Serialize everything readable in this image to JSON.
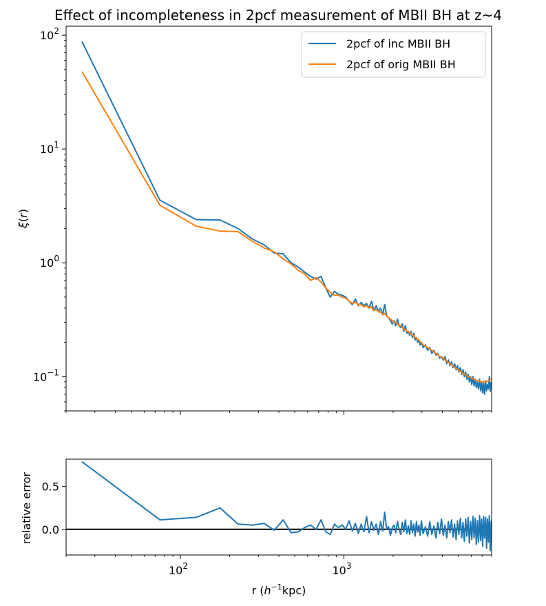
{
  "chart_data": [
    {
      "type": "line",
      "title": "Effect of incompleteness in 2pcf measurement of MBII BH at z~4",
      "xlabel": "",
      "ylabel": "ξ(r)",
      "xscale": "log",
      "yscale": "log",
      "xlim": [
        20,
        8000
      ],
      "ylim": [
        0.05,
        120
      ],
      "y_tick_labels": [
        "10^-1",
        "10^0",
        "10^1",
        "10^2"
      ],
      "legend_placement": "top-right",
      "grid": false,
      "series": [
        {
          "name": "2pcf of inc MBII BH",
          "color": "#1f77b4",
          "x": [
            25,
            75,
            125,
            175,
            225,
            275,
            325,
            375,
            425,
            475,
            525,
            575,
            625,
            675,
            725,
            775,
            825,
            875,
            925,
            975,
            1025,
            1075,
            1125,
            1175,
            1225,
            1275,
            1325,
            1375,
            1425,
            1475,
            1525,
            1575,
            1625,
            1675,
            1725,
            1775,
            1825,
            1875,
            1925,
            1975,
            2025,
            2075,
            2125,
            2175,
            2225,
            2275,
            2325,
            2375,
            2425,
            2475,
            2525,
            2575,
            2625,
            2675,
            2725,
            2775,
            2825,
            2875,
            2925,
            2975,
            3050,
            3150,
            3250,
            3350,
            3450,
            3550,
            3650,
            3750,
            3850,
            3950,
            4050,
            4150,
            4250,
            4350,
            4450,
            4550,
            4650,
            4750,
            4850,
            4950,
            5050,
            5150,
            5250,
            5350,
            5450,
            5550,
            5650,
            5750,
            5850,
            5950,
            6050,
            6150,
            6250,
            6350,
            6450,
            6550,
            6650,
            6750,
            6850,
            6950,
            7050,
            7150,
            7250,
            7350,
            7450,
            7550,
            7650,
            7750,
            7850,
            7950
          ],
          "values": [
            88,
            3.55,
            2.4,
            2.38,
            2.0,
            1.62,
            1.44,
            1.22,
            1.2,
            1.0,
            0.92,
            0.83,
            0.76,
            0.72,
            0.76,
            0.6,
            0.5,
            0.56,
            0.53,
            0.52,
            0.5,
            0.46,
            0.43,
            0.48,
            0.42,
            0.45,
            0.42,
            0.44,
            0.4,
            0.46,
            0.38,
            0.42,
            0.37,
            0.4,
            0.35,
            0.43,
            0.34,
            0.33,
            0.31,
            0.29,
            0.31,
            0.28,
            0.32,
            0.28,
            0.27,
            0.29,
            0.25,
            0.28,
            0.24,
            0.25,
            0.23,
            0.25,
            0.22,
            0.24,
            0.21,
            0.22,
            0.2,
            0.21,
            0.19,
            0.2,
            0.18,
            0.19,
            0.17,
            0.18,
            0.16,
            0.17,
            0.155,
            0.16,
            0.145,
            0.15,
            0.14,
            0.15,
            0.13,
            0.14,
            0.125,
            0.135,
            0.12,
            0.13,
            0.115,
            0.125,
            0.11,
            0.12,
            0.105,
            0.115,
            0.1,
            0.11,
            0.095,
            0.105,
            0.09,
            0.1,
            0.085,
            0.1,
            0.083,
            0.095,
            0.08,
            0.09,
            0.078,
            0.095,
            0.075,
            0.09,
            0.072,
            0.088,
            0.07,
            0.092,
            0.075,
            0.085,
            0.078,
            0.1,
            0.074,
            0.09
          ]
        },
        {
          "name": "2pcf of orig MBII BH",
          "color": "#ff7f0e",
          "x": [
            25,
            75,
            125,
            175,
            225,
            275,
            325,
            375,
            425,
            475,
            525,
            575,
            625,
            675,
            725,
            775,
            825,
            875,
            925,
            975,
            1025,
            1075,
            1125,
            1175,
            1225,
            1275,
            1325,
            1375,
            1425,
            1475,
            1525,
            1575,
            1625,
            1675,
            1725,
            1775,
            1825,
            1875,
            1925,
            1975,
            2025,
            2075,
            2125,
            2175,
            2225,
            2275,
            2325,
            2375,
            2425,
            2475,
            2525,
            2575,
            2625,
            2675,
            2725,
            2775,
            2825,
            2875,
            2925,
            2975,
            3050,
            3150,
            3250,
            3350,
            3450,
            3550,
            3650,
            3750,
            3850,
            3950,
            4050,
            4150,
            4250,
            4350,
            4450,
            4550,
            4650,
            4750,
            4850,
            4950,
            5050,
            5150,
            5250,
            5350,
            5450,
            5550,
            5650,
            5750,
            5850,
            5950,
            6050,
            6150,
            6250,
            6350,
            6450,
            6550,
            6650,
            6750,
            6850,
            6950,
            7050,
            7150,
            7250,
            7350,
            7450,
            7550,
            7650,
            7750,
            7850,
            7950
          ],
          "values": [
            48,
            3.2,
            2.1,
            1.9,
            1.88,
            1.55,
            1.35,
            1.25,
            1.08,
            0.98,
            0.86,
            0.8,
            0.7,
            0.74,
            0.68,
            0.6,
            0.55,
            0.52,
            0.52,
            0.5,
            0.49,
            0.46,
            0.44,
            0.45,
            0.43,
            0.43,
            0.41,
            0.42,
            0.4,
            0.41,
            0.38,
            0.39,
            0.37,
            0.37,
            0.35,
            0.36,
            0.34,
            0.33,
            0.32,
            0.31,
            0.3,
            0.3,
            0.29,
            0.28,
            0.28,
            0.27,
            0.26,
            0.26,
            0.25,
            0.25,
            0.24,
            0.24,
            0.23,
            0.23,
            0.22,
            0.22,
            0.21,
            0.21,
            0.2,
            0.2,
            0.19,
            0.185,
            0.18,
            0.175,
            0.17,
            0.165,
            0.16,
            0.155,
            0.15,
            0.148,
            0.145,
            0.14,
            0.137,
            0.133,
            0.13,
            0.127,
            0.124,
            0.121,
            0.118,
            0.116,
            0.113,
            0.111,
            0.109,
            0.107,
            0.105,
            0.104,
            0.102,
            0.1,
            0.099,
            0.098,
            0.097,
            0.096,
            0.095,
            0.094,
            0.093,
            0.092,
            0.091,
            0.091,
            0.09,
            0.09,
            0.09,
            0.09,
            0.09,
            0.09,
            0.091,
            0.091,
            0.092,
            0.093,
            0.094,
            0.095
          ]
        }
      ]
    },
    {
      "type": "line",
      "title": "",
      "xlabel": "r (h^-1 kpc)",
      "ylabel": "relative error",
      "xscale": "log",
      "xlim": [
        20,
        8000
      ],
      "ylim": [
        -0.3,
        0.82
      ],
      "y_tick_labels": [
        "0.0",
        "0.5"
      ],
      "x_tick_labels": [
        "10^2",
        "10^3"
      ],
      "reference_line": 0.0,
      "grid": false,
      "series": [
        {
          "name": "",
          "color": "#1f77b4",
          "x": [
            25,
            75,
            125,
            175,
            225,
            275,
            325,
            375,
            425,
            475,
            525,
            575,
            625,
            675,
            725,
            775,
            825,
            875,
            925,
            975,
            1025,
            1075,
            1125,
            1175,
            1225,
            1275,
            1325,
            1375,
            1425,
            1475,
            1525,
            1575,
            1625,
            1675,
            1725,
            1775,
            1825,
            1875,
            1925,
            1975,
            2025,
            2075,
            2125,
            2175,
            2225,
            2275,
            2325,
            2375,
            2425,
            2475,
            2525,
            2575,
            2625,
            2675,
            2725,
            2775,
            2825,
            2875,
            2925,
            2975,
            3050,
            3150,
            3250,
            3350,
            3450,
            3550,
            3650,
            3750,
            3850,
            3950,
            4050,
            4150,
            4250,
            4350,
            4450,
            4550,
            4650,
            4750,
            4850,
            4950,
            5050,
            5150,
            5250,
            5350,
            5450,
            5550,
            5650,
            5750,
            5850,
            5950,
            6050,
            6150,
            6250,
            6350,
            6450,
            6550,
            6650,
            6750,
            6850,
            6950,
            7050,
            7150,
            7250,
            7350,
            7450,
            7550,
            7650,
            7750,
            7850,
            7950
          ],
          "values": [
            0.79,
            0.11,
            0.14,
            0.25,
            0.06,
            0.05,
            0.07,
            -0.01,
            0.11,
            -0.04,
            -0.03,
            0.02,
            0.05,
            0.0,
            0.11,
            -0.03,
            -0.06,
            0.06,
            0.02,
            0.05,
            0.0,
            0.1,
            -0.02,
            0.07,
            -0.05,
            0.06,
            -0.03,
            0.15,
            -0.04,
            0.09,
            -0.01,
            0.06,
            -0.06,
            0.09,
            -0.02,
            0.2,
            0.0,
            0.03,
            -0.07,
            0.02,
            0.05,
            -0.04,
            0.09,
            0.0,
            -0.06,
            0.08,
            -0.03,
            0.11,
            -0.05,
            0.04,
            -0.06,
            0.1,
            -0.04,
            0.06,
            -0.08,
            0.09,
            -0.03,
            0.05,
            -0.07,
            0.1,
            -0.05,
            0.03,
            -0.08,
            0.09,
            -0.06,
            0.04,
            -0.1,
            0.08,
            -0.05,
            0.12,
            -0.07,
            0.05,
            -0.1,
            0.09,
            -0.04,
            0.11,
            -0.09,
            0.06,
            -0.12,
            0.1,
            -0.06,
            0.13,
            -0.1,
            0.08,
            -0.14,
            0.12,
            -0.08,
            0.14,
            -0.16,
            0.09,
            -0.12,
            0.15,
            -0.1,
            0.13,
            -0.18,
            0.1,
            -0.15,
            0.16,
            -0.13,
            0.12,
            -0.2,
            0.15,
            -0.1,
            0.14,
            -0.22,
            0.12,
            -0.15,
            0.16,
            -0.25,
            0.1
          ]
        }
      ]
    }
  ]
}
